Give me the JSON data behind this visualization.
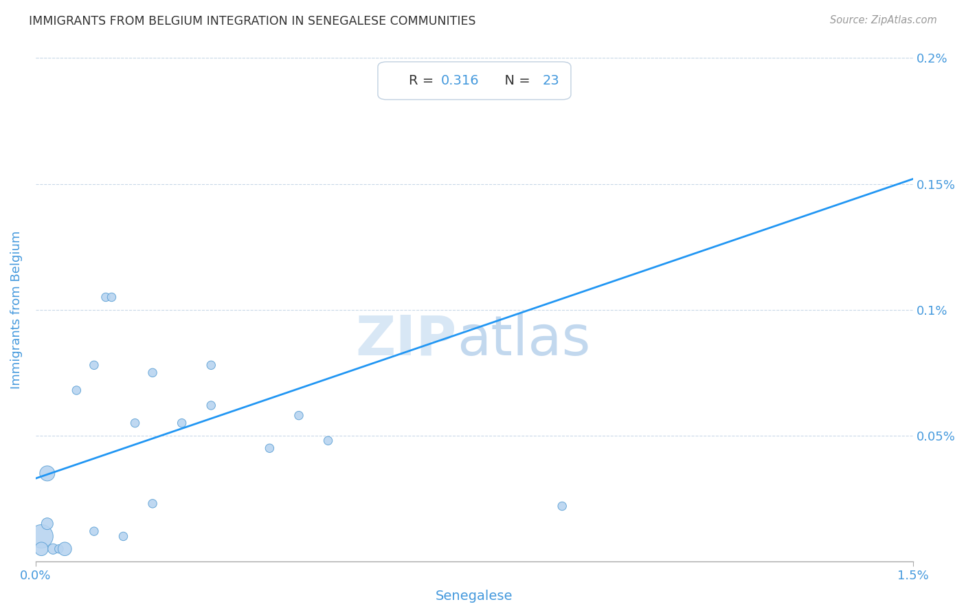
{
  "title": "IMMIGRANTS FROM BELGIUM INTEGRATION IN SENEGALESE COMMUNITIES",
  "source": "Source: ZipAtlas.com",
  "xlabel": "Senegalese",
  "ylabel": "Immigrants from Belgium",
  "R": 0.316,
  "N": 23,
  "x_min": 0.0,
  "x_max": 0.015,
  "y_min": 0.0,
  "y_max": 0.002,
  "x_tick_labels": [
    "0.0%",
    "1.5%"
  ],
  "y_tick_labels": [
    "0.05%",
    "0.1%",
    "0.15%",
    "0.2%"
  ],
  "y_ticks": [
    0.0005,
    0.001,
    0.0015,
    0.002
  ],
  "scatter_x": [
    0.0001,
    0.0001,
    0.0002,
    0.0002,
    0.0003,
    0.0004,
    0.0005,
    0.0007,
    0.001,
    0.001,
    0.0012,
    0.0013,
    0.0015,
    0.0017,
    0.002,
    0.002,
    0.0025,
    0.003,
    0.003,
    0.004,
    0.0045,
    0.005,
    0.009
  ],
  "scatter_y": [
    0.0001,
    5e-05,
    0.00015,
    0.00035,
    5e-05,
    5e-05,
    5e-05,
    0.00068,
    0.00078,
    0.00012,
    0.00105,
    0.00105,
    0.0001,
    0.00055,
    0.00075,
    0.00023,
    0.00055,
    0.00062,
    0.00078,
    0.00045,
    0.00058,
    0.00048,
    0.00022
  ],
  "scatter_sizes": [
    600,
    200,
    150,
    250,
    120,
    80,
    200,
    80,
    80,
    80,
    80,
    80,
    80,
    80,
    80,
    80,
    80,
    80,
    80,
    80,
    80,
    80,
    80
  ],
  "line_x0": 0.0,
  "line_y0": 0.00033,
  "line_x1": 0.015,
  "line_y1": 0.00152,
  "dot_color": "#b8d4f0",
  "dot_edge_color": "#5a9fd4",
  "line_color": "#2196F3",
  "watermark_zip": "ZIP",
  "watermark_atlas": "atlas",
  "background_color": "#ffffff",
  "grid_color": "#c8d8e8",
  "title_color": "#333333",
  "axis_label_color": "#4499dd",
  "tick_label_color": "#4499dd",
  "annotation_box_facecolor": "#ffffff",
  "annotation_box_edgecolor": "#c0d0e0",
  "annotation_r_label_color": "#333333",
  "annotation_value_color": "#4499dd"
}
